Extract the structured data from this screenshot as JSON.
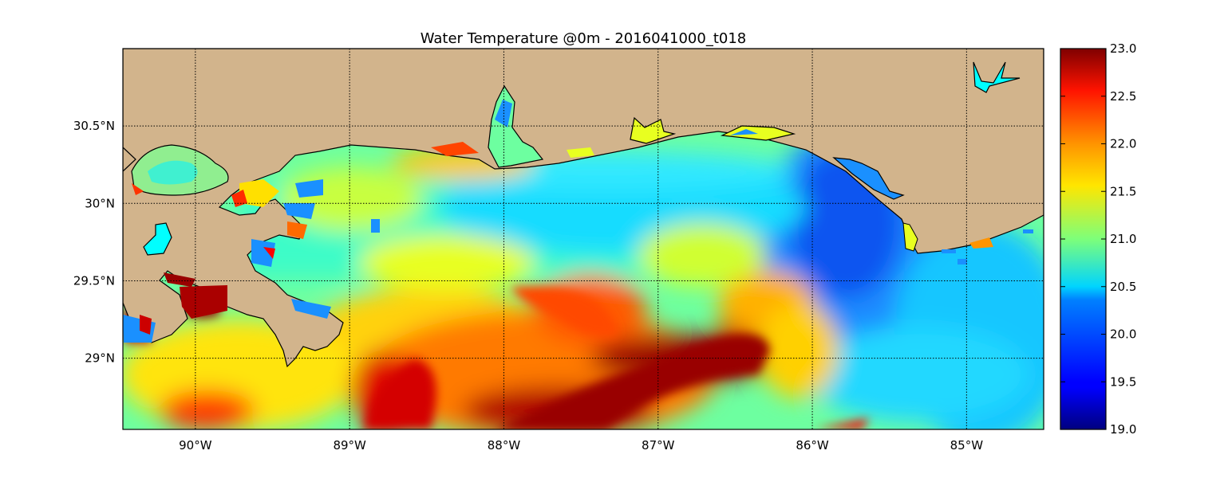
{
  "title": "Water Temperature @0m - 2016041000_t018",
  "map": {
    "lon_range": [
      -90.47,
      -84.5
    ],
    "lat_range": [
      28.54,
      31.0
    ],
    "x_ticks": [
      {
        "lon": -90,
        "label": "90°W"
      },
      {
        "lon": -89,
        "label": "89°W"
      },
      {
        "lon": -88,
        "label": "88°W"
      },
      {
        "lon": -87,
        "label": "87°W"
      },
      {
        "lon": -86,
        "label": "86°W"
      },
      {
        "lon": -85,
        "label": "85°W"
      }
    ],
    "y_ticks": [
      {
        "lat": 30.5,
        "label": "30.5°N"
      },
      {
        "lat": 30.0,
        "label": "30°N"
      },
      {
        "lat": 29.5,
        "label": "29.5°N"
      },
      {
        "lat": 29.0,
        "label": "29°N"
      }
    ],
    "land_color": "#d2b48c",
    "lake_color": "#00ffff",
    "grid": "dotted"
  },
  "colorbar": {
    "min": 19.0,
    "max": 23.0,
    "colormap": "jet",
    "ticks": [
      "23.0",
      "22.5",
      "22.0",
      "21.5",
      "21.0",
      "20.5",
      "20.0",
      "19.5",
      "19.0"
    ]
  }
}
